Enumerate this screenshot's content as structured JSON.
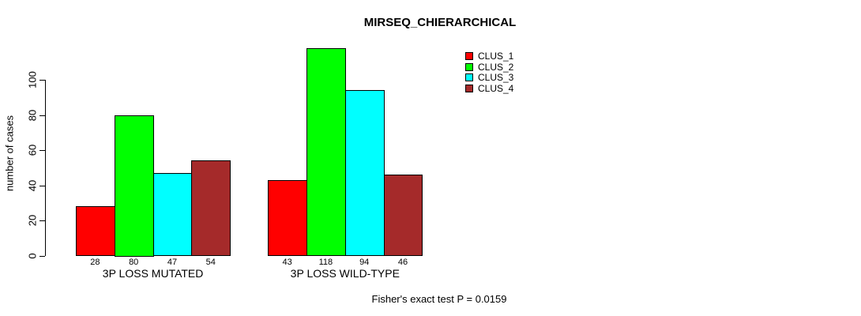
{
  "chart_data": {
    "type": "bar",
    "title": "MIRSEQ_CHIERARCHICAL",
    "categories": [
      "3P LOSS MUTATED",
      "3P LOSS WILD-TYPE"
    ],
    "series": [
      {
        "name": "CLUS_1",
        "color": "#FF0000",
        "values": [
          28,
          43
        ]
      },
      {
        "name": "CLUS_2",
        "color": "#00FF00",
        "values": [
          80,
          118
        ]
      },
      {
        "name": "CLUS_3",
        "color": "#00FFFF",
        "values": [
          47,
          94
        ]
      },
      {
        "name": "CLUS_4",
        "color": "#A52A2A",
        "values": [
          54,
          46
        ]
      }
    ],
    "xlabel": "",
    "ylabel": "number of cases",
    "yticks": [
      0,
      20,
      40,
      60,
      80,
      100
    ],
    "ylim": [
      0,
      120
    ],
    "grid": false,
    "legend": {
      "position": "top-right-inside",
      "entries": [
        "CLUS_1",
        "CLUS_2",
        "CLUS_3",
        "CLUS_4"
      ]
    },
    "bar_value_labels": [
      28,
      80,
      47,
      54,
      43,
      118,
      94,
      46
    ],
    "annotation": "Fisher's exact test P = 0.0159"
  }
}
